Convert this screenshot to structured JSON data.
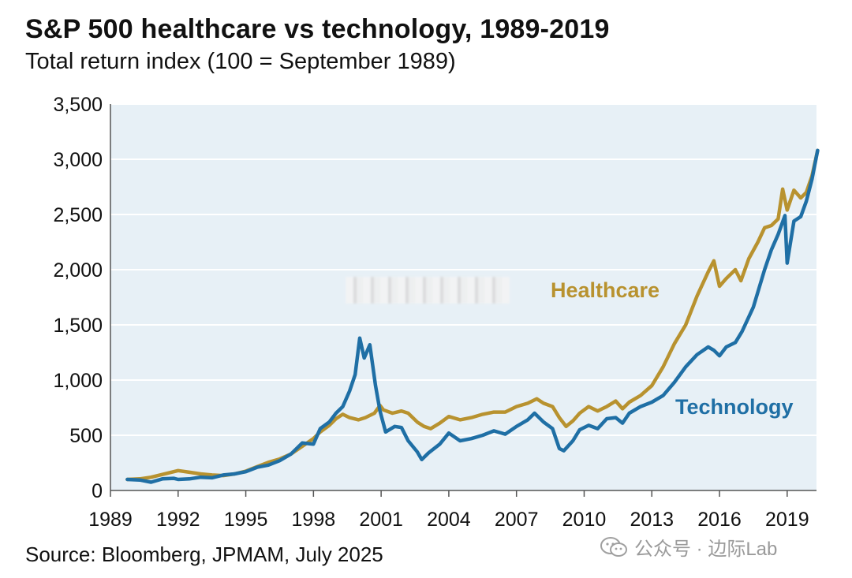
{
  "title": "S&P 500 healthcare vs technology, 1989-2019",
  "subtitle": "Total return index (100 = September 1989)",
  "source": "Source: Bloomberg, JPMAM, July 2025",
  "watermark": "公众号 · 边际Lab",
  "chart_data": {
    "type": "line",
    "title": "S&P 500 healthcare vs technology, 1989-2019",
    "subtitle": "Total return index (100 = September 1989)",
    "xlabel": "",
    "ylabel": "",
    "xlim": [
      1989.0,
      2020.3
    ],
    "ylim": [
      0,
      3500
    ],
    "y_ticks": [
      0,
      500,
      1000,
      1500,
      2000,
      2500,
      3000,
      3500
    ],
    "y_tick_labels": [
      "0",
      "500",
      "1,000",
      "1,500",
      "2,000",
      "2,500",
      "3,000",
      "3,500"
    ],
    "x_ticks": [
      1989,
      1992,
      1995,
      1998,
      2001,
      2004,
      2007,
      2010,
      2013,
      2016,
      2019
    ],
    "x_tick_labels": [
      "1989",
      "1992",
      "1995",
      "1998",
      "2001",
      "2004",
      "2007",
      "2010",
      "2013",
      "2016",
      "2019"
    ],
    "grid": true,
    "series": [
      {
        "name": "Healthcare",
        "color": "#b8922f",
        "points": [
          [
            1989.75,
            100
          ],
          [
            1990.3,
            105
          ],
          [
            1990.8,
            120
          ],
          [
            1991.3,
            145
          ],
          [
            1991.8,
            170
          ],
          [
            1992.0,
            180
          ],
          [
            1992.5,
            165
          ],
          [
            1993.0,
            150
          ],
          [
            1993.5,
            140
          ],
          [
            1994.0,
            135
          ],
          [
            1994.5,
            150
          ],
          [
            1995.0,
            175
          ],
          [
            1995.5,
            215
          ],
          [
            1996.0,
            255
          ],
          [
            1996.5,
            285
          ],
          [
            1997.0,
            330
          ],
          [
            1997.5,
            400
          ],
          [
            1998.0,
            470
          ],
          [
            1998.3,
            530
          ],
          [
            1998.7,
            590
          ],
          [
            1999.0,
            650
          ],
          [
            1999.3,
            690
          ],
          [
            1999.6,
            660
          ],
          [
            2000.0,
            640
          ],
          [
            2000.3,
            660
          ],
          [
            2000.7,
            700
          ],
          [
            2000.95,
            770
          ],
          [
            2001.1,
            730
          ],
          [
            2001.5,
            700
          ],
          [
            2001.9,
            720
          ],
          [
            2002.2,
            700
          ],
          [
            2002.6,
            620
          ],
          [
            2002.9,
            580
          ],
          [
            2003.2,
            560
          ],
          [
            2003.6,
            610
          ],
          [
            2004.0,
            670
          ],
          [
            2004.5,
            640
          ],
          [
            2005.0,
            660
          ],
          [
            2005.5,
            690
          ],
          [
            2006.0,
            710
          ],
          [
            2006.5,
            710
          ],
          [
            2007.0,
            760
          ],
          [
            2007.5,
            790
          ],
          [
            2007.9,
            830
          ],
          [
            2008.2,
            790
          ],
          [
            2008.6,
            760
          ],
          [
            2008.9,
            660
          ],
          [
            2009.2,
            580
          ],
          [
            2009.5,
            630
          ],
          [
            2009.8,
            700
          ],
          [
            2010.2,
            760
          ],
          [
            2010.6,
            720
          ],
          [
            2011.0,
            760
          ],
          [
            2011.4,
            810
          ],
          [
            2011.7,
            740
          ],
          [
            2012.0,
            800
          ],
          [
            2012.5,
            860
          ],
          [
            2013.0,
            950
          ],
          [
            2013.5,
            1120
          ],
          [
            2014.0,
            1330
          ],
          [
            2014.5,
            1500
          ],
          [
            2015.0,
            1760
          ],
          [
            2015.5,
            1980
          ],
          [
            2015.75,
            2080
          ],
          [
            2016.0,
            1850
          ],
          [
            2016.3,
            1920
          ],
          [
            2016.7,
            2000
          ],
          [
            2016.95,
            1900
          ],
          [
            2017.3,
            2100
          ],
          [
            2017.7,
            2250
          ],
          [
            2018.0,
            2380
          ],
          [
            2018.3,
            2400
          ],
          [
            2018.6,
            2460
          ],
          [
            2018.8,
            2730
          ],
          [
            2019.0,
            2540
          ],
          [
            2019.3,
            2720
          ],
          [
            2019.6,
            2650
          ],
          [
            2019.85,
            2700
          ],
          [
            2020.1,
            2850
          ],
          [
            2020.35,
            3080
          ]
        ]
      },
      {
        "name": "Technology",
        "color": "#1f6fa5",
        "points": [
          [
            1989.75,
            100
          ],
          [
            1990.3,
            95
          ],
          [
            1990.8,
            75
          ],
          [
            1991.3,
            105
          ],
          [
            1991.8,
            110
          ],
          [
            1992.0,
            100
          ],
          [
            1992.5,
            105
          ],
          [
            1993.0,
            120
          ],
          [
            1993.5,
            115
          ],
          [
            1994.0,
            140
          ],
          [
            1994.5,
            150
          ],
          [
            1995.0,
            170
          ],
          [
            1995.5,
            210
          ],
          [
            1996.0,
            230
          ],
          [
            1996.5,
            270
          ],
          [
            1997.0,
            330
          ],
          [
            1997.5,
            430
          ],
          [
            1998.0,
            420
          ],
          [
            1998.3,
            560
          ],
          [
            1998.7,
            620
          ],
          [
            1999.0,
            700
          ],
          [
            1999.3,
            760
          ],
          [
            1999.6,
            900
          ],
          [
            1999.85,
            1050
          ],
          [
            2000.05,
            1380
          ],
          [
            2000.25,
            1200
          ],
          [
            2000.5,
            1320
          ],
          [
            2000.75,
            950
          ],
          [
            2000.95,
            720
          ],
          [
            2001.2,
            530
          ],
          [
            2001.6,
            580
          ],
          [
            2001.9,
            570
          ],
          [
            2002.2,
            450
          ],
          [
            2002.6,
            350
          ],
          [
            2002.8,
            280
          ],
          [
            2003.1,
            340
          ],
          [
            2003.6,
            420
          ],
          [
            2004.0,
            520
          ],
          [
            2004.5,
            450
          ],
          [
            2005.0,
            470
          ],
          [
            2005.5,
            500
          ],
          [
            2006.0,
            540
          ],
          [
            2006.5,
            510
          ],
          [
            2007.0,
            580
          ],
          [
            2007.5,
            640
          ],
          [
            2007.8,
            700
          ],
          [
            2008.2,
            620
          ],
          [
            2008.6,
            560
          ],
          [
            2008.9,
            380
          ],
          [
            2009.1,
            360
          ],
          [
            2009.5,
            450
          ],
          [
            2009.8,
            550
          ],
          [
            2010.2,
            590
          ],
          [
            2010.6,
            560
          ],
          [
            2011.0,
            650
          ],
          [
            2011.4,
            660
          ],
          [
            2011.7,
            610
          ],
          [
            2012.0,
            700
          ],
          [
            2012.5,
            760
          ],
          [
            2013.0,
            800
          ],
          [
            2013.5,
            860
          ],
          [
            2014.0,
            980
          ],
          [
            2014.5,
            1120
          ],
          [
            2015.0,
            1230
          ],
          [
            2015.5,
            1300
          ],
          [
            2015.75,
            1270
          ],
          [
            2016.0,
            1220
          ],
          [
            2016.3,
            1300
          ],
          [
            2016.7,
            1340
          ],
          [
            2017.0,
            1440
          ],
          [
            2017.5,
            1660
          ],
          [
            2018.0,
            2000
          ],
          [
            2018.3,
            2180
          ],
          [
            2018.6,
            2320
          ],
          [
            2018.9,
            2490
          ],
          [
            2019.0,
            2060
          ],
          [
            2019.3,
            2440
          ],
          [
            2019.6,
            2480
          ],
          [
            2019.85,
            2620
          ],
          [
            2020.1,
            2820
          ],
          [
            2020.35,
            3080
          ]
        ]
      }
    ]
  }
}
